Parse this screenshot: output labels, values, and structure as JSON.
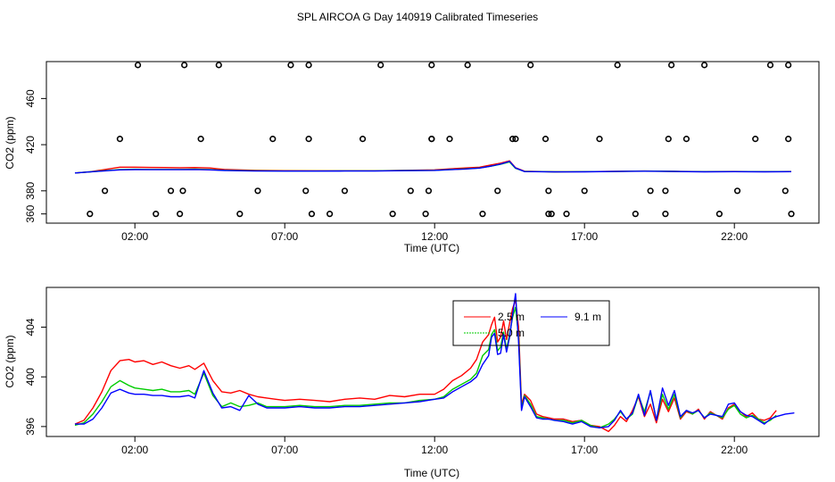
{
  "colors": {
    "s2_5": "#ff0000",
    "s5_0": "#00cc00",
    "s9_1": "#0000ff",
    "axis": "#000000",
    "marker": "#000000"
  },
  "chart_data": [
    {
      "type": "line",
      "title": "SPL AIRCOA G  Day 140919  Calibrated Timeseries",
      "xlabel": "Time (UTC)",
      "ylabel": "CO2 (ppm)",
      "xlim": [
        0.0,
        24.0
      ],
      "ylim": [
        352,
        492
      ],
      "x_ticks": [
        2,
        7,
        12,
        17,
        22
      ],
      "x_tick_labels": [
        "02:00",
        "07:00",
        "12:00",
        "17:00",
        "22:00"
      ],
      "y_ticks": [
        360,
        380,
        420,
        460
      ],
      "y_tick_labels": [
        "360",
        "380",
        "420",
        "460"
      ],
      "series": [
        {
          "name": "2.5 m",
          "color": "#ff0000",
          "x": [
            0.0,
            0.5,
            1.0,
            1.5,
            2.0,
            2.5,
            3.0,
            3.5,
            4.0,
            4.5,
            5.0,
            6.0,
            7.0,
            8.0,
            9.0,
            10.0,
            11.0,
            12.0,
            12.5,
            13.0,
            13.5,
            13.9,
            14.2,
            14.5,
            14.7,
            15.0,
            16.0,
            17.0,
            18.0,
            19.0,
            20.0,
            21.0,
            22.0,
            23.0,
            23.9
          ],
          "y": [
            395.5,
            396.5,
            398.5,
            400.5,
            400.5,
            400.3,
            400.2,
            400.0,
            400.2,
            399.8,
            398.5,
            397.8,
            397.5,
            397.4,
            397.4,
            397.4,
            397.8,
            398.2,
            399.0,
            399.8,
            400.5,
            402.5,
            404.0,
            406.0,
            400.0,
            397.0,
            396.5,
            396.6,
            396.9,
            397.2,
            396.9,
            396.7,
            396.8,
            396.6,
            396.8
          ]
        },
        {
          "name": "5.0 m",
          "color": "#00cc00",
          "x": [
            0.0,
            0.5,
            1.0,
            1.5,
            2.0,
            2.5,
            3.0,
            3.5,
            4.0,
            4.5,
            5.0,
            6.0,
            7.0,
            8.0,
            9.0,
            10.0,
            11.0,
            12.0,
            12.5,
            13.0,
            13.5,
            13.9,
            14.2,
            14.5,
            14.7,
            15.0,
            16.0,
            17.0,
            18.0,
            19.0,
            20.0,
            21.0,
            22.0,
            23.0,
            23.9
          ],
          "y": [
            395.5,
            396.5,
            397.5,
            398.5,
            398.7,
            398.6,
            398.6,
            398.6,
            398.8,
            398.5,
            397.8,
            397.4,
            397.2,
            397.2,
            397.3,
            397.3,
            397.6,
            397.8,
            398.4,
            399.0,
            399.8,
            401.5,
            403.0,
            405.0,
            399.5,
            396.8,
            396.5,
            396.6,
            396.8,
            397.1,
            396.9,
            396.6,
            396.7,
            396.6,
            396.7
          ]
        },
        {
          "name": "9.1 m",
          "color": "#0000ff",
          "x": [
            0.0,
            0.5,
            1.0,
            1.5,
            2.0,
            2.5,
            3.0,
            3.5,
            4.0,
            4.5,
            5.0,
            6.0,
            7.0,
            8.0,
            9.0,
            10.0,
            11.0,
            12.0,
            12.5,
            13.0,
            13.5,
            13.9,
            14.2,
            14.5,
            14.7,
            15.0,
            16.0,
            17.0,
            18.0,
            19.0,
            20.0,
            21.0,
            22.0,
            23.0,
            23.9
          ],
          "y": [
            395.5,
            396.4,
            397.3,
            398.2,
            398.4,
            398.3,
            398.3,
            398.3,
            398.5,
            398.2,
            397.6,
            397.2,
            397.1,
            397.1,
            397.2,
            397.2,
            397.5,
            397.7,
            398.3,
            398.9,
            399.7,
            401.5,
            403.2,
            405.5,
            399.8,
            396.7,
            396.4,
            396.5,
            396.8,
            397.0,
            396.8,
            396.5,
            396.6,
            396.5,
            396.6
          ]
        }
      ],
      "markers": {
        "symbol": "open-circle",
        "x": [
          0.5,
          1.0,
          1.5,
          2.1,
          2.7,
          3.2,
          3.5,
          3.6,
          3.65,
          4.2,
          4.8,
          5.5,
          6.1,
          6.6,
          7.2,
          7.7,
          7.8,
          7.8,
          7.9,
          8.5,
          9.0,
          9.6,
          10.2,
          10.6,
          11.2,
          11.7,
          11.8,
          11.9,
          11.9,
          11.9,
          12.5,
          13.1,
          13.6,
          14.1,
          14.6,
          14.7,
          15.2,
          15.7,
          15.8,
          15.8,
          15.9,
          16.4,
          17.0,
          17.5,
          18.1,
          18.7,
          19.2,
          19.7,
          19.7,
          19.8,
          19.9,
          20.4,
          21.0,
          21.5,
          22.1,
          22.7,
          23.2,
          23.7,
          23.8,
          23.8,
          23.9
        ],
        "y": [
          360,
          380,
          425,
          489,
          360,
          380,
          360,
          380,
          489,
          425,
          489,
          360,
          380,
          425,
          489,
          380,
          489,
          425,
          360,
          360,
          380,
          425,
          489,
          360,
          380,
          360,
          380,
          425,
          425,
          489,
          425,
          489,
          360,
          380,
          425,
          425,
          489,
          425,
          380,
          360,
          360,
          360,
          380,
          425,
          489,
          360,
          380,
          360,
          380,
          425,
          489,
          425,
          489,
          360,
          380,
          425,
          489,
          380,
          489,
          425,
          360
        ]
      }
    },
    {
      "type": "line",
      "title": "",
      "xlabel": "Time (UTC)",
      "ylabel": "CO2 (ppm)",
      "xlim": [
        0.0,
        24.0
      ],
      "ylim": [
        395.2,
        407.2
      ],
      "x_ticks": [
        2,
        7,
        12,
        17,
        22
      ],
      "x_tick_labels": [
        "02:00",
        "07:00",
        "12:00",
        "17:00",
        "22:00"
      ],
      "y_ticks": [
        396,
        400,
        404
      ],
      "y_tick_labels": [
        "396",
        "400",
        "404"
      ],
      "legend": {
        "position": "top-center",
        "entries": [
          "2.5 m",
          "5.0 m",
          "9.1 m"
        ],
        "visible_labels": [
          "2.5 m",
          "5.0 m",
          "9.1 m"
        ]
      },
      "series": [
        {
          "name": "2.5 m",
          "color": "#ff0000",
          "x": [
            0.0,
            0.3,
            0.6,
            0.9,
            1.2,
            1.5,
            1.8,
            2.0,
            2.3,
            2.6,
            2.9,
            3.2,
            3.5,
            3.8,
            4.0,
            4.3,
            4.6,
            4.9,
            5.2,
            5.5,
            5.8,
            6.1,
            6.4,
            6.7,
            7.0,
            7.5,
            8.0,
            8.5,
            9.0,
            9.5,
            10.0,
            10.5,
            11.0,
            11.5,
            12.0,
            12.3,
            12.6,
            12.9,
            13.2,
            13.4,
            13.6,
            13.8,
            13.9,
            14.0,
            14.1,
            14.2,
            14.3,
            14.4,
            14.5,
            14.6,
            14.7,
            14.8,
            14.9,
            15.0,
            15.2,
            15.4,
            15.6,
            15.8,
            16.0,
            16.3,
            16.6,
            16.9,
            17.2,
            17.5,
            17.8,
            18.0,
            18.2,
            18.4,
            18.6,
            18.8,
            19.0,
            19.2,
            19.4,
            19.6,
            19.8,
            20.0,
            20.2,
            20.4,
            20.6,
            20.8,
            21.0,
            21.2,
            21.4,
            21.6,
            21.8,
            22.0,
            22.2,
            22.4,
            22.6,
            22.8,
            23.0,
            23.2,
            23.4
          ],
          "y": [
            396.2,
            396.5,
            397.5,
            398.8,
            400.5,
            401.3,
            401.4,
            401.2,
            401.3,
            401.0,
            401.2,
            400.9,
            400.7,
            400.9,
            400.6,
            401.1,
            399.7,
            398.8,
            398.7,
            398.9,
            398.6,
            398.4,
            398.3,
            398.2,
            398.1,
            398.2,
            398.1,
            398.0,
            398.2,
            398.3,
            398.2,
            398.5,
            398.4,
            398.6,
            398.6,
            399.0,
            399.7,
            400.1,
            400.7,
            401.4,
            402.8,
            403.4,
            404.2,
            404.8,
            402.8,
            403.2,
            404.5,
            403.0,
            404.3,
            405.5,
            406.2,
            404.0,
            397.8,
            398.6,
            398.1,
            397.0,
            396.8,
            396.7,
            396.6,
            396.6,
            396.4,
            396.5,
            396.1,
            396.0,
            395.6,
            396.1,
            396.8,
            396.4,
            397.3,
            398.4,
            396.8,
            397.8,
            396.3,
            398.2,
            397.2,
            398.3,
            396.6,
            397.2,
            397.0,
            397.4,
            396.6,
            397.2,
            396.9,
            396.6,
            397.5,
            397.8,
            397.2,
            396.8,
            397.1,
            396.6,
            396.5,
            396.7,
            397.3
          ]
        },
        {
          "name": "5.0 m",
          "color": "#00cc00",
          "x": [
            0.0,
            0.3,
            0.6,
            0.9,
            1.2,
            1.5,
            1.8,
            2.0,
            2.3,
            2.6,
            2.9,
            3.2,
            3.5,
            3.8,
            4.0,
            4.3,
            4.6,
            4.9,
            5.2,
            5.5,
            5.8,
            6.1,
            6.4,
            6.7,
            7.0,
            7.5,
            8.0,
            8.5,
            9.0,
            9.5,
            10.0,
            10.5,
            11.0,
            11.5,
            12.0,
            12.3,
            12.6,
            12.9,
            13.2,
            13.4,
            13.6,
            13.8,
            13.9,
            14.0,
            14.1,
            14.2,
            14.3,
            14.4,
            14.5,
            14.6,
            14.7,
            14.8,
            14.9,
            15.0,
            15.2,
            15.4,
            15.6,
            15.8,
            16.0,
            16.3,
            16.6,
            16.9,
            17.2,
            17.5,
            17.8,
            18.0,
            18.2,
            18.4,
            18.6,
            18.8,
            19.0,
            19.2,
            19.4,
            19.6,
            19.8,
            20.0,
            20.2,
            20.4,
            20.6,
            20.8,
            21.0,
            21.2,
            21.4,
            21.6,
            21.8,
            22.0,
            22.2,
            22.4,
            22.6,
            22.8,
            23.0,
            23.2,
            23.4
          ],
          "y": [
            396.1,
            396.3,
            397.0,
            398.0,
            399.2,
            399.7,
            399.3,
            399.1,
            399.0,
            398.9,
            399.0,
            398.8,
            398.8,
            398.9,
            398.6,
            400.3,
            398.5,
            397.6,
            397.9,
            397.6,
            397.7,
            397.9,
            397.6,
            397.6,
            397.6,
            397.7,
            397.6,
            397.6,
            397.7,
            397.7,
            397.8,
            397.9,
            397.9,
            398.1,
            398.2,
            398.4,
            399.0,
            399.4,
            399.8,
            400.3,
            401.7,
            402.2,
            403.4,
            403.8,
            402.1,
            402.4,
            403.6,
            402.2,
            403.4,
            404.8,
            405.6,
            403.2,
            397.5,
            398.5,
            397.8,
            396.8,
            396.7,
            396.6,
            396.5,
            396.5,
            396.3,
            396.5,
            396.1,
            395.9,
            396.2,
            396.6,
            397.2,
            396.6,
            397.0,
            398.5,
            397.2,
            398.8,
            396.5,
            398.6,
            397.4,
            398.6,
            396.7,
            397.3,
            397.0,
            397.3,
            396.7,
            397.1,
            396.9,
            396.7,
            397.4,
            397.7,
            397.0,
            396.7,
            396.9,
            396.6,
            396.3,
            396.5,
            396.9
          ]
        },
        {
          "name": "9.1 m",
          "color": "#0000ff",
          "x": [
            0.0,
            0.3,
            0.6,
            0.9,
            1.2,
            1.5,
            1.8,
            2.0,
            2.3,
            2.6,
            2.9,
            3.2,
            3.5,
            3.8,
            4.0,
            4.3,
            4.6,
            4.9,
            5.2,
            5.5,
            5.8,
            6.1,
            6.4,
            6.7,
            7.0,
            7.5,
            8.0,
            8.5,
            9.0,
            9.5,
            10.0,
            10.5,
            11.0,
            11.5,
            12.0,
            12.3,
            12.6,
            12.9,
            13.2,
            13.4,
            13.6,
            13.8,
            13.9,
            14.0,
            14.1,
            14.2,
            14.3,
            14.4,
            14.5,
            14.6,
            14.7,
            14.8,
            14.9,
            15.0,
            15.2,
            15.4,
            15.6,
            15.8,
            16.0,
            16.3,
            16.6,
            16.9,
            17.2,
            17.5,
            17.8,
            18.0,
            18.2,
            18.4,
            18.6,
            18.8,
            19.0,
            19.2,
            19.4,
            19.6,
            19.8,
            20.0,
            20.2,
            20.4,
            20.6,
            20.8,
            21.0,
            21.2,
            21.4,
            21.6,
            21.8,
            22.0,
            22.2,
            22.4,
            22.6,
            22.8,
            23.0,
            23.2,
            23.4,
            23.7,
            24.0
          ],
          "y": [
            396.2,
            396.2,
            396.6,
            397.5,
            398.7,
            399.0,
            398.7,
            398.6,
            398.6,
            398.5,
            398.5,
            398.4,
            398.4,
            398.5,
            398.3,
            400.5,
            398.7,
            397.5,
            397.6,
            397.3,
            398.5,
            397.8,
            397.5,
            397.5,
            397.5,
            397.6,
            397.5,
            397.5,
            397.6,
            397.6,
            397.7,
            397.8,
            397.9,
            398.0,
            398.2,
            398.3,
            398.8,
            399.2,
            399.6,
            400.0,
            401.0,
            401.7,
            403.2,
            403.5,
            401.8,
            401.9,
            403.4,
            402.0,
            403.2,
            405.0,
            406.7,
            402.8,
            397.3,
            398.4,
            397.6,
            396.7,
            396.6,
            396.6,
            396.5,
            396.4,
            396.2,
            396.4,
            396.0,
            395.9,
            396.0,
            396.5,
            397.3,
            396.6,
            397.1,
            398.6,
            396.9,
            398.9,
            396.5,
            399.1,
            397.7,
            398.9,
            396.8,
            397.3,
            397.1,
            397.3,
            396.7,
            397.0,
            396.9,
            396.8,
            397.8,
            397.9,
            397.2,
            396.9,
            396.8,
            396.5,
            396.2,
            396.6,
            396.8,
            397.0,
            397.1
          ]
        }
      ]
    }
  ]
}
